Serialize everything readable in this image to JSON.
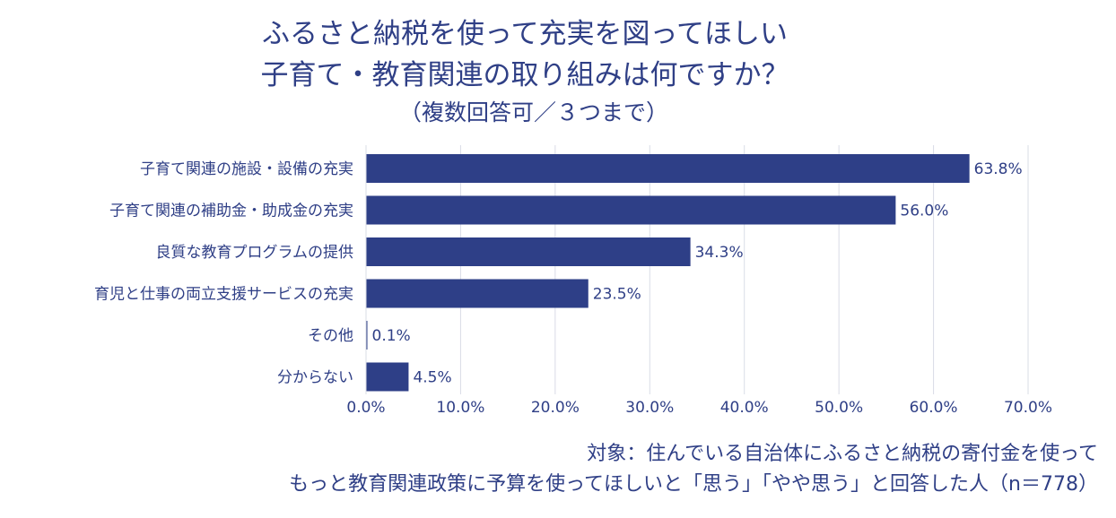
{
  "header": {
    "title_line1": "ふるさと納税を使って充実を図ってほしい",
    "title_line2": "子育て・教育関連の取り組みは何ですか？",
    "subtitle": "（複数回答可／３つまで）"
  },
  "footer": {
    "note_line1": "対象：住んでいる自治体にふるさと納税の寄付金を使って",
    "note_line2": "もっと教育関連政策に予算を使ってほしいと「思う」「やや思う」と回答した人（n＝778）"
  },
  "colors": {
    "bar": "#2e3f87",
    "text": "#2f3f86",
    "grid": "#d9dce6"
  },
  "chart_data": {
    "type": "bar",
    "orientation": "horizontal",
    "categories": [
      "子育て関連の施設・設備の充実",
      "子育て関連の補助金・助成金の充実",
      "良質な教育プログラムの提供",
      "育児と仕事の両立支援サービスの充実",
      "その他",
      "分からない"
    ],
    "values": [
      63.8,
      56.0,
      34.3,
      23.5,
      0.1,
      4.5
    ],
    "value_labels": [
      "63.8%",
      "56.0%",
      "34.3%",
      "23.5%",
      "0.1%",
      "4.5%"
    ],
    "x_ticks": [
      "0.0%",
      "10.0%",
      "20.0%",
      "30.0%",
      "40.0%",
      "50.0%",
      "60.0%",
      "70.0%"
    ],
    "xlim": [
      0,
      70
    ],
    "grid": true,
    "legend": "none"
  }
}
